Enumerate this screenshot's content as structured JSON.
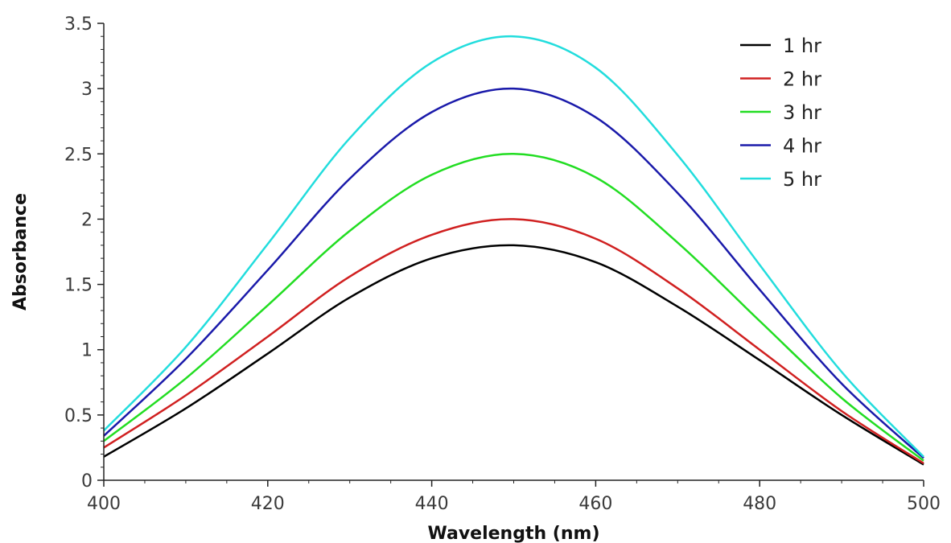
{
  "chart_data": {
    "type": "line",
    "xlabel": "Wavelength (nm)",
    "ylabel": "Absorbance",
    "xlim": [
      400,
      500
    ],
    "ylim": [
      0,
      3.5
    ],
    "xticks": [
      400,
      420,
      440,
      460,
      480,
      500
    ],
    "xtick_labels": [
      "400",
      "420",
      "440",
      "460",
      "480",
      "500"
    ],
    "yticks": [
      0,
      0.5,
      1,
      1.5,
      2,
      2.5,
      3,
      3.5
    ],
    "ytick_labels": [
      "0",
      "0.5",
      "1",
      "1.5",
      "2",
      "2.5",
      "3",
      "3.5"
    ],
    "grid": false,
    "legend_position": "top-right",
    "x": [
      400,
      410,
      420,
      430,
      440,
      450,
      460,
      470,
      480,
      490,
      500
    ],
    "series": [
      {
        "name": "1 hr",
        "color": "#000000",
        "values": [
          0.18,
          0.55,
          0.97,
          1.4,
          1.7,
          1.8,
          1.67,
          1.33,
          0.92,
          0.5,
          0.12
        ]
      },
      {
        "name": "2 hr",
        "color": "#d02020",
        "values": [
          0.25,
          0.65,
          1.1,
          1.56,
          1.88,
          2.0,
          1.85,
          1.47,
          1.0,
          0.53,
          0.13
        ]
      },
      {
        "name": "3 hr",
        "color": "#22dd22",
        "values": [
          0.3,
          0.78,
          1.34,
          1.91,
          2.34,
          2.5,
          2.32,
          1.82,
          1.22,
          0.63,
          0.15
        ]
      },
      {
        "name": "4 hr",
        "color": "#1a1aaa",
        "values": [
          0.34,
          0.93,
          1.61,
          2.31,
          2.82,
          3.0,
          2.78,
          2.2,
          1.46,
          0.74,
          0.17
        ]
      },
      {
        "name": "5 hr",
        "color": "#22dddd",
        "values": [
          0.38,
          1.02,
          1.81,
          2.62,
          3.2,
          3.4,
          3.16,
          2.49,
          1.65,
          0.83,
          0.18
        ]
      }
    ]
  }
}
